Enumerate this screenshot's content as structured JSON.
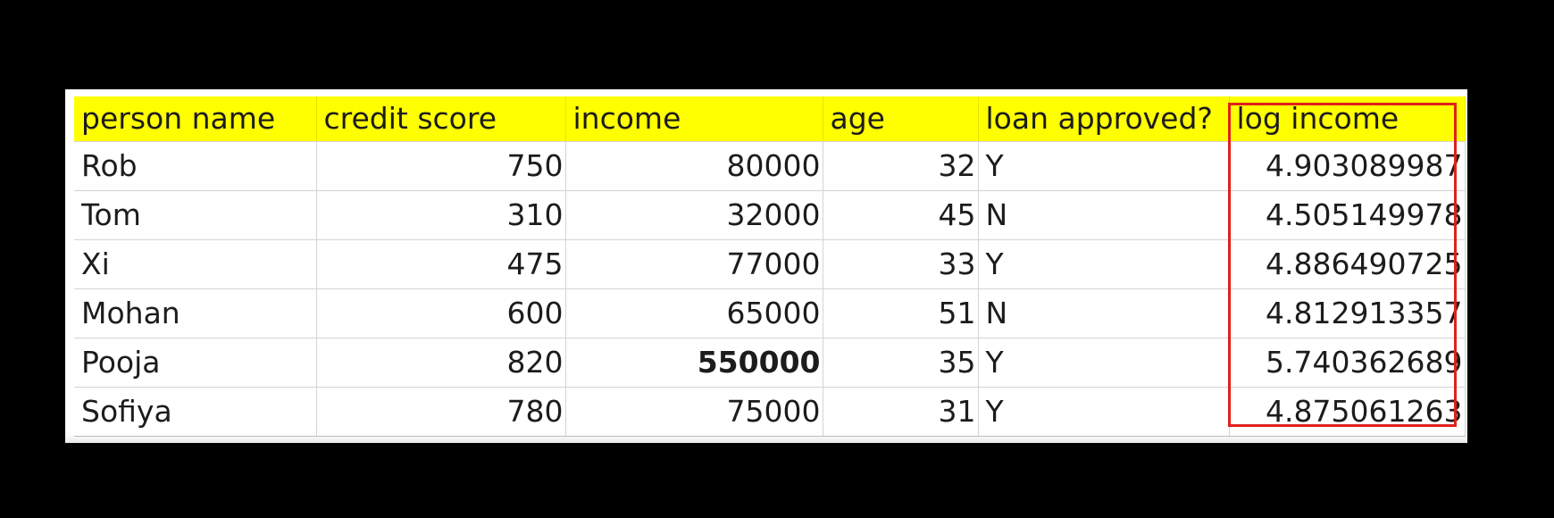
{
  "table": {
    "headers": [
      "person name",
      "credit score",
      "income",
      "age",
      "loan approved?",
      "log income"
    ],
    "rows": [
      [
        "Rob",
        "750",
        "80000",
        "32",
        "Y",
        "4.903089987"
      ],
      [
        "Tom",
        "310",
        "32000",
        "45",
        "N",
        "4.505149978"
      ],
      [
        "Xi",
        "475",
        "77000",
        "33",
        "Y",
        "4.886490725"
      ],
      [
        "Mohan",
        "600",
        "65000",
        "51",
        "N",
        "4.812913357"
      ],
      [
        "Pooja",
        "820",
        "550000",
        "35",
        "Y",
        "5.740362689"
      ],
      [
        "Sofiya",
        "780",
        "75000",
        "31",
        "Y",
        "4.875061263"
      ]
    ],
    "bold_cell": "income of Pooja (outlier)",
    "header_fill": "#ffff00",
    "highlight_color": "#e0201b",
    "highlighted_column": "log income"
  }
}
